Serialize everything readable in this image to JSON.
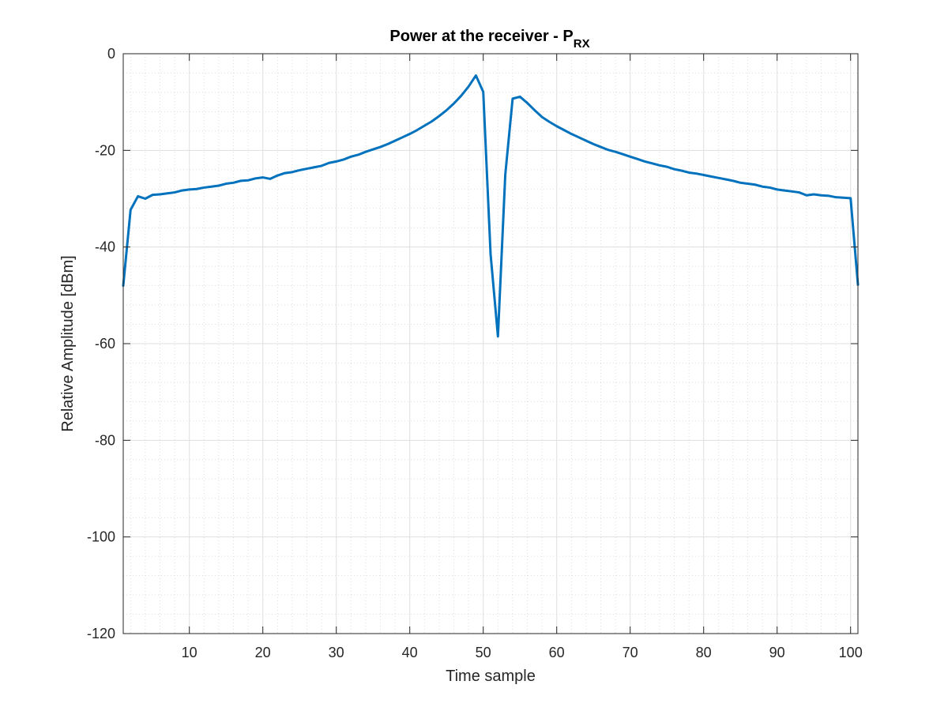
{
  "chart_data": {
    "type": "line",
    "title": "Power at the receiver - P",
    "title_subscript": "RX",
    "xlabel": "Time sample",
    "ylabel": "Relative Amplitude [dBm]",
    "xlim": [
      1,
      101
    ],
    "ylim": [
      -120,
      0
    ],
    "xticks": [
      10,
      20,
      30,
      40,
      50,
      60,
      70,
      80,
      90,
      100
    ],
    "yticks": [
      0,
      -20,
      -40,
      -60,
      -80,
      -100,
      -120
    ],
    "grid": "on",
    "minor_grid": "on",
    "line_color": "#0072bd",
    "series": [
      {
        "name": "P_RX",
        "x": [
          1,
          2,
          3,
          4,
          5,
          6,
          7,
          8,
          9,
          10,
          11,
          12,
          13,
          14,
          15,
          16,
          17,
          18,
          19,
          20,
          21,
          22,
          23,
          24,
          25,
          26,
          27,
          28,
          29,
          30,
          31,
          32,
          33,
          34,
          35,
          36,
          37,
          38,
          39,
          40,
          41,
          42,
          43,
          44,
          45,
          46,
          47,
          48,
          49,
          50,
          51,
          52,
          53,
          54,
          55,
          56,
          57,
          58,
          59,
          60,
          61,
          62,
          63,
          64,
          65,
          66,
          67,
          68,
          69,
          70,
          71,
          72,
          73,
          74,
          75,
          76,
          77,
          78,
          79,
          80,
          81,
          82,
          83,
          84,
          85,
          86,
          87,
          88,
          89,
          90,
          91,
          92,
          93,
          94,
          95,
          96,
          97,
          98,
          99,
          100,
          101
        ],
        "values": [
          -48,
          -32.3,
          -29.5,
          -30,
          -29.2,
          -29.1,
          -28.9,
          -28.7,
          -28.3,
          -28.1,
          -28,
          -27.7,
          -27.5,
          -27.3,
          -26.9,
          -26.7,
          -26.3,
          -26.2,
          -25.8,
          -25.6,
          -25.9,
          -25.2,
          -24.7,
          -24.5,
          -24.1,
          -23.8,
          -23.5,
          -23.2,
          -22.6,
          -22.3,
          -21.9,
          -21.3,
          -20.9,
          -20.3,
          -19.8,
          -19.3,
          -18.7,
          -18,
          -17.3,
          -16.6,
          -15.8,
          -14.9,
          -14,
          -12.9,
          -11.7,
          -10.3,
          -8.7,
          -6.8,
          -4.5,
          -7.9,
          -41.5,
          -58.5,
          -25,
          -9.3,
          -8.9,
          -10.2,
          -11.7,
          -13.1,
          -14.1,
          -15,
          -15.8,
          -16.6,
          -17.3,
          -18,
          -18.7,
          -19.3,
          -19.9,
          -20.3,
          -20.8,
          -21.3,
          -21.8,
          -22.3,
          -22.7,
          -23.1,
          -23.4,
          -23.9,
          -24.2,
          -24.6,
          -24.8,
          -25.1,
          -25.4,
          -25.7,
          -26,
          -26.3,
          -26.7,
          -26.9,
          -27.1,
          -27.5,
          -27.7,
          -28.1,
          -28.3,
          -28.5,
          -28.7,
          -29.3,
          -29.1,
          -29.3,
          -29.4,
          -29.7,
          -29.8,
          -29.9,
          -47.8
        ]
      }
    ]
  }
}
